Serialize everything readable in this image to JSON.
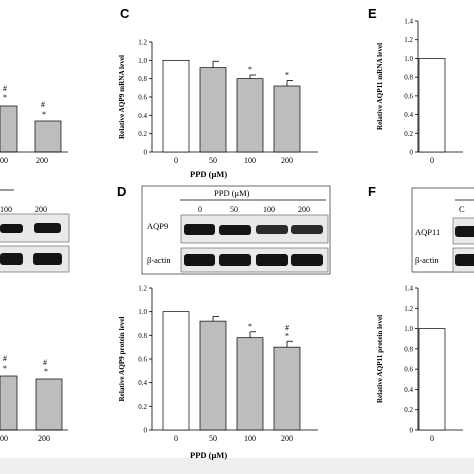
{
  "panel_letters": {
    "c": "C",
    "d": "D",
    "e": "E",
    "f": "F"
  },
  "colors": {
    "control_bar": "#ffffff",
    "treated_bar": "#bdbdbd",
    "band": "#141414",
    "footer": "#efefef"
  },
  "left_fragment": {
    "top_x_ticks": [
      "00",
      "200"
    ],
    "blot_ticks": [
      "100",
      "200"
    ],
    "bottom_x_ticks": [
      "00",
      "200"
    ],
    "marks": [
      "#",
      "*"
    ]
  },
  "blot_d": {
    "header": "PPD (μM)",
    "lanes": [
      "0",
      "50",
      "100",
      "200"
    ],
    "rows": [
      "AQP9",
      "β-actin"
    ]
  },
  "blot_f": {
    "header_fragment": "C",
    "rows": [
      "AQP11",
      "β-actin"
    ]
  },
  "chart_data": [
    {
      "panel": "C",
      "type": "bar",
      "categories": [
        "0",
        "50",
        "100",
        "200"
      ],
      "values": [
        1.0,
        0.92,
        0.8,
        0.72
      ],
      "errors": [
        0,
        0.07,
        0.04,
        0.06
      ],
      "annotations": [
        "",
        "",
        "*",
        "*"
      ],
      "ylabel": "Relative AQP9 mRNA level",
      "xlabel": "PPD (μM)",
      "ylim": [
        0,
        1.2
      ],
      "yticks": [
        "0",
        "0.2",
        "0.4",
        "0.6",
        "0.8",
        "1.0",
        "1.2"
      ]
    },
    {
      "panel": "D",
      "type": "bar",
      "categories": [
        "0",
        "50",
        "100",
        "200"
      ],
      "values": [
        1.0,
        0.92,
        0.78,
        0.7
      ],
      "errors": [
        0,
        0.04,
        0.05,
        0.05
      ],
      "annotations": [
        "",
        "",
        "*",
        "#\n*"
      ],
      "ylabel": "Relative AQP9 protein level",
      "xlabel": "PPD (μM)",
      "ylim": [
        0,
        1.2
      ],
      "yticks": [
        "0",
        "0.2",
        "0.4",
        "0.6",
        "0.8",
        "1.0",
        "1.2"
      ]
    },
    {
      "panel": "E",
      "type": "bar",
      "categories": [
        "0"
      ],
      "values": [
        1.0
      ],
      "errors": [
        0
      ],
      "annotations": [
        ""
      ],
      "ylabel": "Relative AQP11 mRNA level",
      "xlabel": "",
      "ylim": [
        0,
        1.4
      ],
      "yticks": [
        "0",
        "0.2",
        "0.4",
        "0.6",
        "0.8",
        "1.0",
        "1.2",
        "1.4"
      ]
    },
    {
      "panel": "F",
      "type": "bar",
      "categories": [
        "0"
      ],
      "values": [
        1.0
      ],
      "errors": [
        0
      ],
      "annotations": [
        ""
      ],
      "ylabel": "Relative AQP11 protein level",
      "xlabel": "",
      "ylim": [
        0,
        1.4
      ],
      "yticks": [
        "0",
        "0.2",
        "0.4",
        "0.6",
        "0.8",
        "1.0",
        "1.2",
        "1.4"
      ]
    },
    {
      "panel": "A-fragment",
      "type": "bar",
      "categories": [
        "100",
        "200"
      ],
      "values": [
        0.62,
        0.45
      ],
      "annotations": [
        "#\n*",
        "#\n*"
      ]
    },
    {
      "panel": "B-fragment",
      "type": "bar",
      "categories": [
        "100",
        "200"
      ],
      "values": [
        0.58,
        0.55
      ],
      "annotations": [
        "#\n*",
        "#\n*"
      ]
    }
  ]
}
